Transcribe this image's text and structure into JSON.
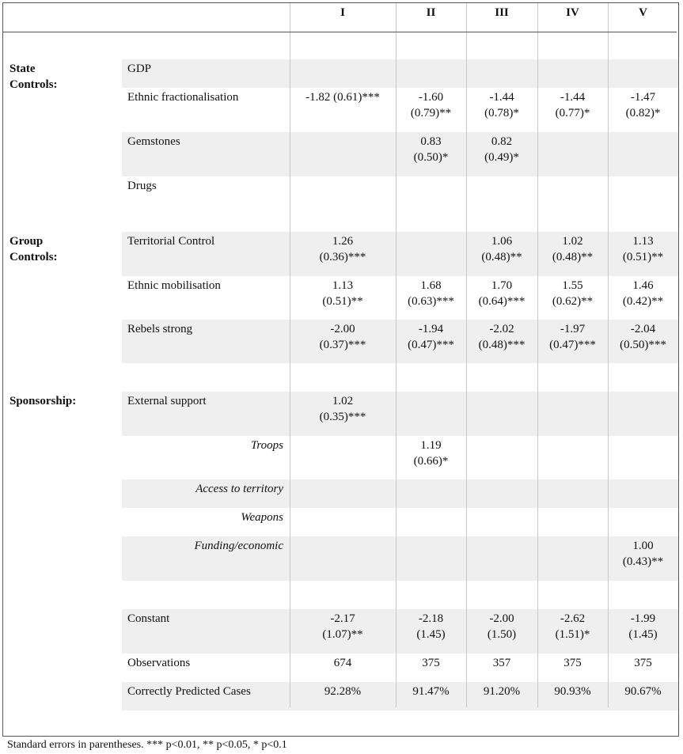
{
  "columns": [
    "I",
    "II",
    "III",
    "IV",
    "V"
  ],
  "sections": {
    "state": "State Controls:",
    "group": "Group Controls:",
    "sponsorship": "Sponsorship:"
  },
  "rows": [
    {
      "label": "GDP",
      "values": [
        [],
        [],
        [],
        [],
        []
      ]
    },
    {
      "label": "Ethnic fractionalisation",
      "values": [
        [
          "-1.82 (0.61)***"
        ],
        [
          "-1.60",
          "(0.79)**"
        ],
        [
          "-1.44",
          "(0.78)*"
        ],
        [
          "-1.44",
          "(0.77)*"
        ],
        [
          "-1.47",
          "(0.82)*"
        ]
      ]
    },
    {
      "label": "Gemstones",
      "values": [
        [],
        [
          "0.83",
          "(0.50)*"
        ],
        [
          "0.82",
          "(0.49)*"
        ],
        [],
        []
      ]
    },
    {
      "label": "Drugs",
      "values": [
        [],
        [],
        [],
        [],
        []
      ]
    },
    {
      "label": "Territorial Control",
      "values": [
        [
          "1.26",
          "(0.36)***"
        ],
        [],
        [
          "1.06",
          "(0.48)**"
        ],
        [
          "1.02",
          "(0.48)**"
        ],
        [
          "1.13",
          "(0.51)**"
        ]
      ]
    },
    {
      "label": "Ethnic mobilisation",
      "values": [
        [
          "1.13",
          "(0.51)**"
        ],
        [
          "1.68",
          "(0.63)***"
        ],
        [
          "1.70",
          "(0.64)***"
        ],
        [
          "1.55",
          "(0.62)**"
        ],
        [
          "1.46",
          "(0.42)**"
        ]
      ]
    },
    {
      "label": "Rebels strong",
      "values": [
        [
          "-2.00",
          "(0.37)***"
        ],
        [
          "-1.94",
          "(0.47)***"
        ],
        [
          "-2.02",
          "(0.48)***"
        ],
        [
          "-1.97",
          "(0.47)***"
        ],
        [
          "-2.04",
          "(0.50)***"
        ]
      ]
    },
    {
      "label": "External support",
      "values": [
        [
          "1.02",
          "(0.35)***"
        ],
        [],
        [],
        [],
        []
      ]
    },
    {
      "label": "Troops",
      "values": [
        [],
        [
          "1.19",
          "(0.66)*"
        ],
        [],
        [],
        []
      ]
    },
    {
      "label": "Access to territory",
      "values": [
        [],
        [],
        [],
        [],
        []
      ]
    },
    {
      "label": "Weapons",
      "values": [
        [],
        [],
        [],
        [],
        []
      ]
    },
    {
      "label": "Funding/economic",
      "values": [
        [],
        [],
        [],
        [],
        [
          "1.00",
          "(0.43)**"
        ]
      ]
    },
    {
      "label": "Constant",
      "values": [
        [
          "-2.17",
          "(1.07)**"
        ],
        [
          "-2.18",
          "(1.45)"
        ],
        [
          "-2.00",
          "(1.50)"
        ],
        [
          "-2.62",
          "(1.51)*"
        ],
        [
          "-1.99",
          "(1.45)"
        ]
      ]
    },
    {
      "label": "Observations",
      "values": [
        [
          "674"
        ],
        [
          "375"
        ],
        [
          "357"
        ],
        [
          "375"
        ],
        [
          "375"
        ]
      ]
    },
    {
      "label": "Correctly Predicted Cases",
      "values": [
        [
          "92.28%"
        ],
        [
          "91.47%"
        ],
        [
          "91.20%"
        ],
        [
          "90.93%"
        ],
        [
          "90.67%"
        ]
      ]
    }
  ],
  "footnote": "Standard errors in parentheses. *** p<0.01, ** p<0.05, * p<0.1"
}
